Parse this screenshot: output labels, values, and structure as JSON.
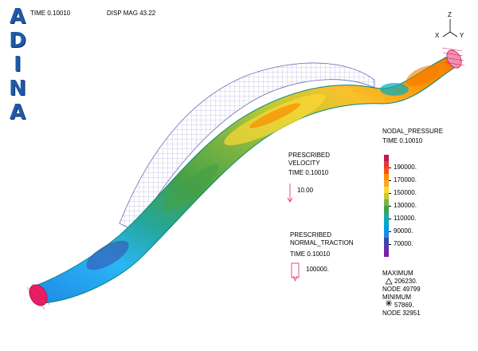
{
  "header": {
    "time": "TIME 0.10010",
    "disp_mag": "DISP MAG 43.22"
  },
  "logo": {
    "letters": [
      "A",
      "D",
      "I",
      "N",
      "A"
    ]
  },
  "triad": {
    "z": "Z",
    "x": "X",
    "y": "Y"
  },
  "velocity_box": {
    "line1": "PRESCRIBED",
    "line2": "VELOCITY",
    "time": "TIME 0.10010",
    "value": "10.00"
  },
  "traction_box": {
    "line1": "PRESCRIBED",
    "line2": "NORMAL_TRACTION",
    "time": "TIME 0.10010",
    "value": "100000."
  },
  "legend": {
    "title": "NODAL_PRESSURE",
    "time": "TIME 0.10010",
    "labels": [
      "190000.",
      "170000.",
      "150000.",
      "130000.",
      "110000.",
      "90000.",
      "70000."
    ],
    "colors": [
      "#c2185b",
      "#e53935",
      "#f4511e",
      "#ff8f00",
      "#f9a825",
      "#fdd835",
      "#c0ca33",
      "#7cb342",
      "#43a047",
      "#26a69a",
      "#00acc1",
      "#039be5",
      "#1e88e5",
      "#3949ab",
      "#5e35b1",
      "#7b1fa2"
    ]
  },
  "extrema": {
    "max_label": "MAXIMUM",
    "max_value": "206230.",
    "max_node": "NODE 49799",
    "min_label": "MINIMUM",
    "min_value": "57869.",
    "min_node": "NODE 32951"
  }
}
